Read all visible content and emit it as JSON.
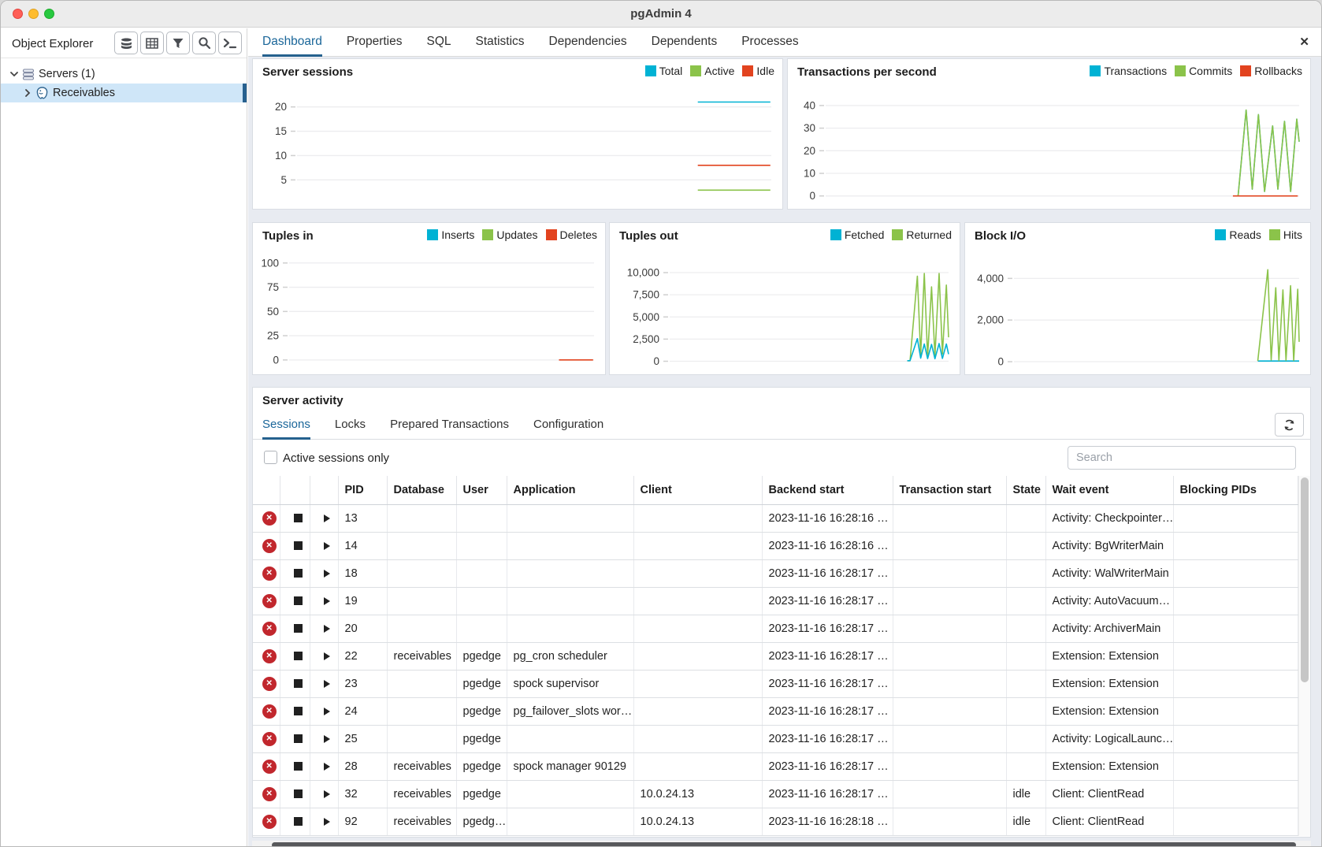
{
  "window": {
    "title": "pgAdmin 4"
  },
  "sidebar": {
    "title": "Object Explorer",
    "toolbar_icons": [
      "server-type-icon",
      "grid-view-icon",
      "filter-icon",
      "search-icon",
      "terminal-icon"
    ],
    "tree": [
      {
        "label": "Servers (1)",
        "level": 0,
        "expanded": true,
        "selected": false
      },
      {
        "label": "Receivables",
        "level": 1,
        "expanded": false,
        "selected": true
      }
    ]
  },
  "tabs": {
    "items": [
      "Dashboard",
      "Properties",
      "SQL",
      "Statistics",
      "Dependencies",
      "Dependents",
      "Processes"
    ],
    "active": "Dashboard",
    "close_icon": "✕"
  },
  "chart_data": [
    {
      "type": "line",
      "title": "Server sessions",
      "legend": [
        {
          "name": "Total",
          "color": "#00b2d4"
        },
        {
          "name": "Active",
          "color": "#8bc34a"
        },
        {
          "name": "Idle",
          "color": "#e2431f"
        }
      ],
      "ticks": [
        {
          "label": "20",
          "value": 20
        },
        {
          "label": "15",
          "value": 15
        },
        {
          "label": "10",
          "value": 10
        },
        {
          "label": "5",
          "value": 5
        }
      ],
      "ylim": [
        1,
        24
      ],
      "label_width": 56,
      "grid": true,
      "legend_position": "top-right",
      "series": [
        {
          "name": "Total",
          "color": "#00b2d4",
          "points": [
            [
              0.845,
              21
            ],
            [
              0.998,
              21
            ]
          ]
        },
        {
          "name": "Idle",
          "color": "#e2431f",
          "points": [
            [
              0.845,
              8
            ],
            [
              0.998,
              8
            ]
          ]
        },
        {
          "name": "Active",
          "color": "#8bc34a",
          "points": [
            [
              0.845,
              2.9
            ],
            [
              0.998,
              2.9
            ]
          ]
        }
      ]
    },
    {
      "type": "line",
      "title": "Transactions per second",
      "legend": [
        {
          "name": "Transactions",
          "color": "#00b2d4"
        },
        {
          "name": "Commits",
          "color": "#8bc34a"
        },
        {
          "name": "Rollbacks",
          "color": "#e2431f"
        }
      ],
      "ticks": [
        {
          "label": "40",
          "value": 40
        },
        {
          "label": "30",
          "value": 30
        },
        {
          "label": "20",
          "value": 20
        },
        {
          "label": "10",
          "value": 10
        },
        {
          "label": "0",
          "value": 0
        }
      ],
      "ylim": [
        -1.5,
        48
      ],
      "label_width": 48,
      "grid": true,
      "legend_position": "top-right",
      "series": [
        {
          "name": "Transactions",
          "color": "#00b2d4",
          "points": [
            [
              0.871,
              0
            ],
            [
              0.888,
              38
            ],
            [
              0.901,
              3
            ],
            [
              0.914,
              36
            ],
            [
              0.927,
              2
            ],
            [
              0.944,
              31
            ],
            [
              0.955,
              3
            ],
            [
              0.969,
              33
            ],
            [
              0.982,
              2
            ],
            [
              0.995,
              34
            ],
            [
              1.0,
              24
            ]
          ]
        },
        {
          "name": "Commits",
          "color": "#8bc34a",
          "points": [
            [
              0.871,
              0
            ],
            [
              0.888,
              38
            ],
            [
              0.901,
              3
            ],
            [
              0.914,
              36
            ],
            [
              0.927,
              2
            ],
            [
              0.944,
              31
            ],
            [
              0.955,
              3
            ],
            [
              0.969,
              33
            ],
            [
              0.982,
              2
            ],
            [
              0.995,
              34
            ],
            [
              1.0,
              24
            ]
          ]
        },
        {
          "name": "Rollbacks",
          "color": "#e2431f",
          "points": [
            [
              0.86,
              0
            ],
            [
              0.997,
              0
            ]
          ]
        }
      ]
    },
    {
      "type": "line",
      "title": "Tuples in",
      "legend": [
        {
          "name": "Inserts",
          "color": "#00b2d4"
        },
        {
          "name": "Updates",
          "color": "#8bc34a"
        },
        {
          "name": "Deletes",
          "color": "#e2431f"
        }
      ],
      "ticks": [
        {
          "label": "100",
          "value": 100
        },
        {
          "label": "75",
          "value": 75
        },
        {
          "label": "50",
          "value": 50
        },
        {
          "label": "25",
          "value": 25
        },
        {
          "label": "0",
          "value": 0
        }
      ],
      "ylim": [
        -5,
        112
      ],
      "label_width": 46,
      "grid": true,
      "legend_position": "top-right",
      "series": [
        {
          "name": "Inserts",
          "color": "#00b2d4",
          "points": []
        },
        {
          "name": "Updates",
          "color": "#8bc34a",
          "points": []
        },
        {
          "name": "Deletes",
          "color": "#e2431f",
          "points": [
            [
              0.885,
              0
            ],
            [
              0.997,
              0
            ]
          ]
        }
      ]
    },
    {
      "type": "line",
      "title": "Tuples out",
      "legend": [
        {
          "name": "Fetched",
          "color": "#00b2d4"
        },
        {
          "name": "Returned",
          "color": "#8bc34a"
        }
      ],
      "ticks": [
        {
          "label": "10,000",
          "value": 10000
        },
        {
          "label": "7,500",
          "value": 7500
        },
        {
          "label": "5,000",
          "value": 5000
        },
        {
          "label": "2,500",
          "value": 2500
        },
        {
          "label": "0",
          "value": 0
        }
      ],
      "ylim": [
        -400,
        12400
      ],
      "label_width": 76,
      "grid": true,
      "legend_position": "top-right",
      "series": [
        {
          "name": "Returned",
          "color": "#8bc34a",
          "points": [
            [
              0.852,
              60
            ],
            [
              0.862,
              60
            ],
            [
              0.888,
              9600
            ],
            [
              0.9,
              700
            ],
            [
              0.913,
              9900
            ],
            [
              0.925,
              500
            ],
            [
              0.939,
              8400
            ],
            [
              0.951,
              600
            ],
            [
              0.966,
              9900
            ],
            [
              0.978,
              800
            ],
            [
              0.992,
              8600
            ],
            [
              1.0,
              2700
            ]
          ]
        },
        {
          "name": "Fetched",
          "color": "#00b2d4",
          "points": [
            [
              0.852,
              60
            ],
            [
              0.862,
              60
            ],
            [
              0.888,
              2550
            ],
            [
              0.9,
              350
            ],
            [
              0.913,
              1950
            ],
            [
              0.925,
              300
            ],
            [
              0.939,
              1900
            ],
            [
              0.951,
              280
            ],
            [
              0.966,
              2000
            ],
            [
              0.978,
              320
            ],
            [
              0.992,
              1950
            ],
            [
              1.0,
              800
            ]
          ]
        }
      ]
    },
    {
      "type": "line",
      "title": "Block I/O",
      "legend": [
        {
          "name": "Reads",
          "color": "#00b2d4"
        },
        {
          "name": "Hits",
          "color": "#8bc34a"
        }
      ],
      "ticks": [
        {
          "label": "4,000",
          "value": 4000
        },
        {
          "label": "2,000",
          "value": 2000
        },
        {
          "label": "0",
          "value": 0
        }
      ],
      "ylim": [
        -150,
        5300
      ],
      "label_width": 62,
      "grid": true,
      "legend_position": "top-right",
      "series": [
        {
          "name": "Reads",
          "color": "#00b2d4",
          "points": [
            [
              0.855,
              30
            ],
            [
              1.0,
              30
            ]
          ]
        },
        {
          "name": "Hits",
          "color": "#8bc34a",
          "points": [
            [
              0.855,
              40
            ],
            [
              0.89,
              4420
            ],
            [
              0.902,
              80
            ],
            [
              0.918,
              3550
            ],
            [
              0.929,
              60
            ],
            [
              0.943,
              3450
            ],
            [
              0.954,
              70
            ],
            [
              0.97,
              3650
            ],
            [
              0.981,
              60
            ],
            [
              0.995,
              3480
            ],
            [
              1.0,
              950
            ]
          ]
        }
      ]
    }
  ],
  "server_activity": {
    "title": "Server activity",
    "tabs": [
      "Sessions",
      "Locks",
      "Prepared Transactions",
      "Configuration"
    ],
    "active_tab": "Sessions",
    "checkbox_label": "Active sessions only",
    "checkbox_checked": false,
    "search_placeholder": "Search",
    "table": {
      "columns": [
        "",
        "",
        "",
        "PID",
        "Database",
        "User",
        "Application",
        "Client",
        "Backend start",
        "Transaction start",
        "State",
        "Wait event",
        "Blocking PIDs"
      ],
      "rows": [
        {
          "pid": "13",
          "database": "",
          "user": "",
          "application": "",
          "client": "",
          "backend_start": "2023-11-16 16:28:16 …",
          "transaction_start": "",
          "state": "",
          "wait_event": "Activity: Checkpointer…",
          "blocking_pids": ""
        },
        {
          "pid": "14",
          "database": "",
          "user": "",
          "application": "",
          "client": "",
          "backend_start": "2023-11-16 16:28:16 …",
          "transaction_start": "",
          "state": "",
          "wait_event": "Activity: BgWriterMain",
          "blocking_pids": ""
        },
        {
          "pid": "18",
          "database": "",
          "user": "",
          "application": "",
          "client": "",
          "backend_start": "2023-11-16 16:28:17 …",
          "transaction_start": "",
          "state": "",
          "wait_event": "Activity: WalWriterMain",
          "blocking_pids": ""
        },
        {
          "pid": "19",
          "database": "",
          "user": "",
          "application": "",
          "client": "",
          "backend_start": "2023-11-16 16:28:17 …",
          "transaction_start": "",
          "state": "",
          "wait_event": "Activity: AutoVacuum…",
          "blocking_pids": ""
        },
        {
          "pid": "20",
          "database": "",
          "user": "",
          "application": "",
          "client": "",
          "backend_start": "2023-11-16 16:28:17 …",
          "transaction_start": "",
          "state": "",
          "wait_event": "Activity: ArchiverMain",
          "blocking_pids": ""
        },
        {
          "pid": "22",
          "database": "receivables",
          "user": "pgedge",
          "application": "pg_cron scheduler",
          "client": "",
          "backend_start": "2023-11-16 16:28:17 …",
          "transaction_start": "",
          "state": "",
          "wait_event": "Extension: Extension",
          "blocking_pids": ""
        },
        {
          "pid": "23",
          "database": "",
          "user": "pgedge",
          "application": "spock supervisor",
          "client": "",
          "backend_start": "2023-11-16 16:28:17 …",
          "transaction_start": "",
          "state": "",
          "wait_event": "Extension: Extension",
          "blocking_pids": ""
        },
        {
          "pid": "24",
          "database": "",
          "user": "pgedge",
          "application": "pg_failover_slots wor…",
          "client": "",
          "backend_start": "2023-11-16 16:28:17 …",
          "transaction_start": "",
          "state": "",
          "wait_event": "Extension: Extension",
          "blocking_pids": ""
        },
        {
          "pid": "25",
          "database": "",
          "user": "pgedge",
          "application": "",
          "client": "",
          "backend_start": "2023-11-16 16:28:17 …",
          "transaction_start": "",
          "state": "",
          "wait_event": "Activity: LogicalLaunc…",
          "blocking_pids": ""
        },
        {
          "pid": "28",
          "database": "receivables",
          "user": "pgedge",
          "application": "spock manager 90129",
          "client": "",
          "backend_start": "2023-11-16 16:28:17 …",
          "transaction_start": "",
          "state": "",
          "wait_event": "Extension: Extension",
          "blocking_pids": ""
        },
        {
          "pid": "32",
          "database": "receivables",
          "user": "pgedge",
          "application": "",
          "client": "10.0.24.13",
          "backend_start": "2023-11-16 16:28:17 …",
          "transaction_start": "",
          "state": "idle",
          "wait_event": "Client: ClientRead",
          "blocking_pids": ""
        },
        {
          "pid": "92",
          "database": "receivables",
          "user": "pgedg…",
          "application": "",
          "client": "10.0.24.13",
          "backend_start": "2023-11-16 16:28:18 …",
          "transaction_start": "",
          "state": "idle",
          "wait_event": "Client: ClientRead",
          "blocking_pids": ""
        }
      ]
    }
  }
}
